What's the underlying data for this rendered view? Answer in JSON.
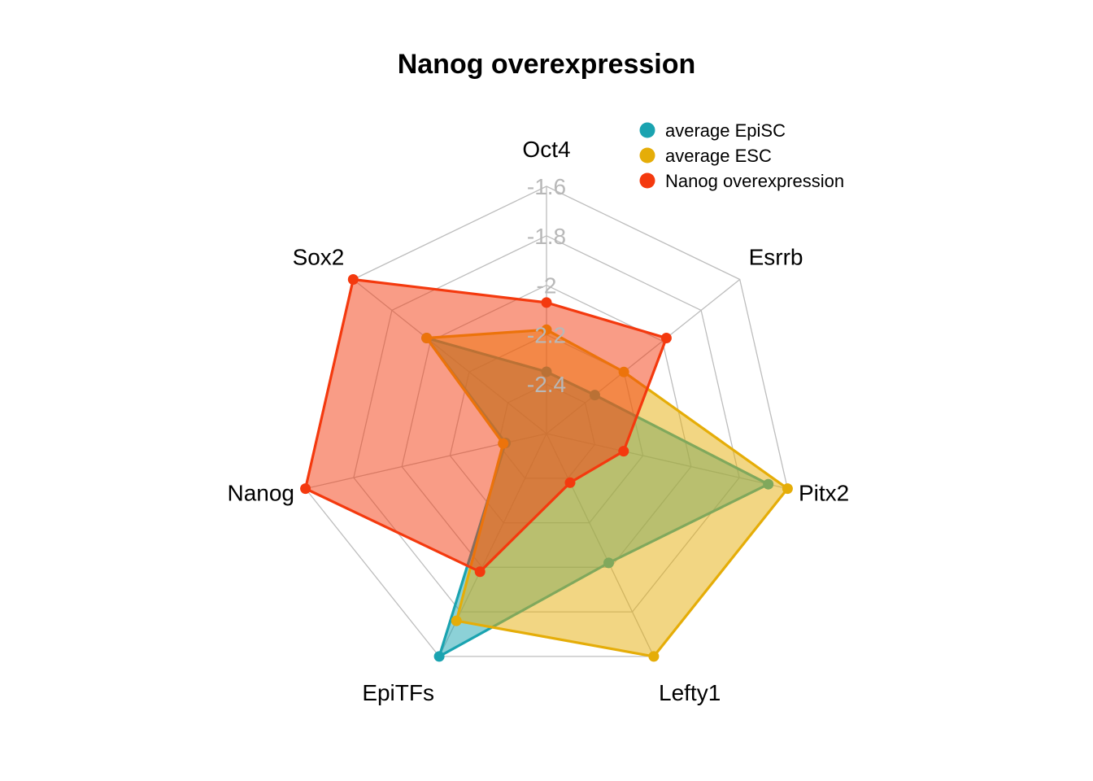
{
  "chart_data": {
    "type": "radar",
    "title": "Nanog overexpression",
    "axes": [
      "Oct4",
      "Esrrb",
      "Pitx2",
      "Lefty1",
      "EpiTFs",
      "Nanog",
      "Sox2"
    ],
    "range": [
      -2.6,
      -1.6
    ],
    "ticks": [
      -1.6,
      -1.8,
      -2,
      -2.2,
      -2.4
    ],
    "tick_labels": [
      "-1.6",
      "-1.8",
      "-2",
      "-2.2",
      "-2.4"
    ],
    "grid": true,
    "legend_position": "top-right",
    "series": [
      {
        "name": "average EpiSC",
        "color": "#1aa3b0",
        "values": [
          -2.35,
          -2.35,
          -1.68,
          -2.02,
          -1.6,
          -2.43,
          -1.98
        ]
      },
      {
        "name": "average ESC",
        "color": "#e5ad08",
        "values": [
          -2.18,
          -2.2,
          -1.6,
          -1.6,
          -1.76,
          -2.42,
          -1.98
        ]
      },
      {
        "name": "Nanog overexpression",
        "color": "#f4390e",
        "values": [
          -2.07,
          -1.98,
          -2.28,
          -2.38,
          -1.98,
          -1.6,
          -1.6
        ]
      }
    ]
  }
}
